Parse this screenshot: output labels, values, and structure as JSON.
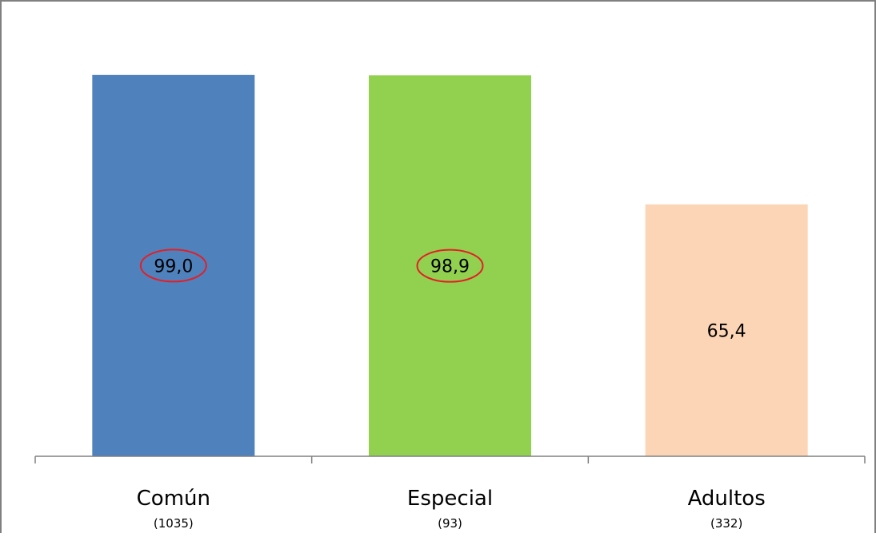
{
  "chart_data": {
    "type": "bar",
    "categories": [
      "Común",
      "Especial",
      "Adultos"
    ],
    "sample_sizes": [
      "(1035)",
      "(93)",
      "(332)"
    ],
    "values": [
      99.0,
      98.9,
      65.4
    ],
    "data_labels": [
      "99,0",
      "98,9",
      "65,4"
    ],
    "highlighted": [
      true,
      true,
      false
    ],
    "colors": [
      "#4f81bd",
      "#92d050",
      "#fbd5b5"
    ],
    "highlight_color": "#e31f26",
    "ylim": [
      0,
      100
    ],
    "title": "",
    "xlabel": "",
    "ylabel": "",
    "grid": false,
    "legend": "none"
  }
}
